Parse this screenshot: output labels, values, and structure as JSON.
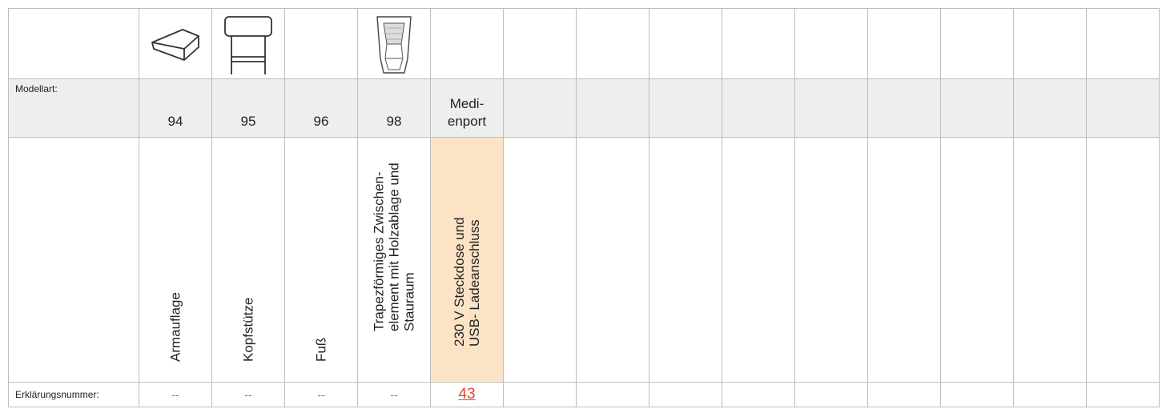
{
  "table": {
    "row_labels": {
      "model": "Modellart:",
      "explanation": "Erklärungsnummer:"
    },
    "columns": [
      {
        "icon": "armrest-block-icon",
        "model": "94",
        "description": [
          "Armauflage"
        ],
        "explanation": "--"
      },
      {
        "icon": "headrest-icon",
        "model": "95",
        "description": [
          "Kopfstütze"
        ],
        "explanation": "--"
      },
      {
        "icon": "",
        "model": "96",
        "description": [
          "Fuß"
        ],
        "explanation": "--"
      },
      {
        "icon": "trapezoid-element-icon",
        "model": "98",
        "description": [
          "Trapezförmiges Zwischen-",
          "element mit Holzablage und",
          "Stauraum"
        ],
        "explanation": "--"
      },
      {
        "icon": "",
        "model_lines": [
          "Medi-",
          "enport"
        ],
        "description": [
          "230 V Steckdose und",
          "USB- Ladeanschluss"
        ],
        "explanation": "43",
        "highlight": "#fde3c6"
      }
    ]
  },
  "colors": {
    "highlight": "#fde3c6",
    "link": "#e2452b",
    "grey_row": "#eeeeee",
    "grid": "#bdbdbd"
  }
}
